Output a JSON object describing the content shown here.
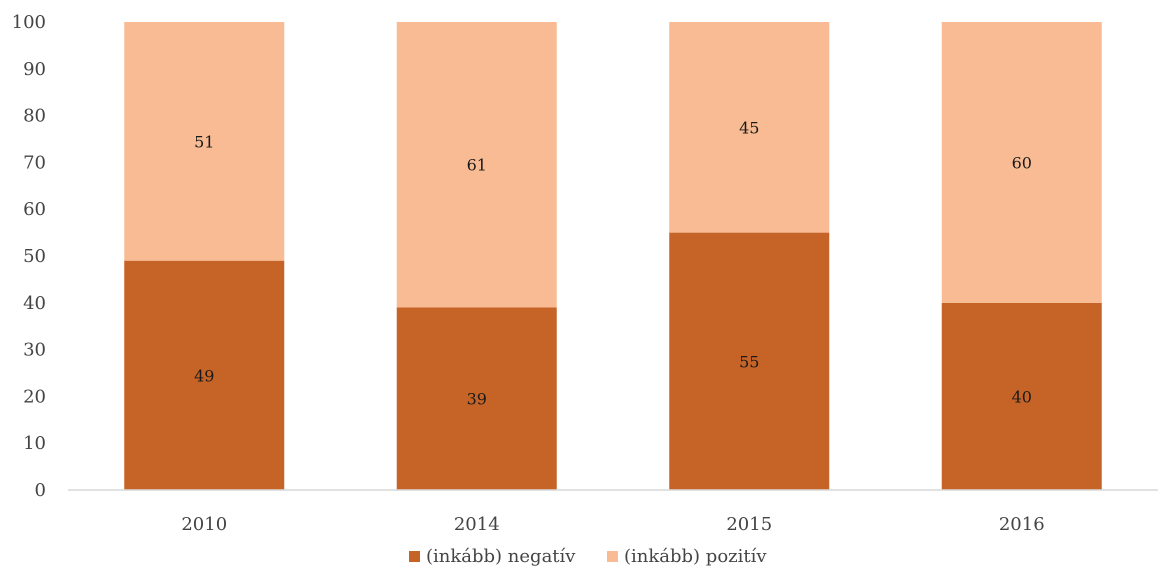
{
  "chart_data": {
    "type": "bar",
    "stacked": true,
    "categories": [
      "2010",
      "2014",
      "2015",
      "2016"
    ],
    "series": [
      {
        "name": "(inkább) negatív",
        "values": [
          49,
          39,
          55,
          40
        ],
        "color": "#c66427"
      },
      {
        "name": "(inkább) pozitív",
        "values": [
          51,
          61,
          45,
          60
        ],
        "color": "#f8bb93"
      }
    ],
    "ylim": [
      0,
      100
    ],
    "yticks": [
      0,
      10,
      20,
      30,
      40,
      50,
      60,
      70,
      80,
      90,
      100
    ],
    "grid": false,
    "legend": "bottom-center",
    "title": "",
    "xlabel": "",
    "ylabel": ""
  }
}
